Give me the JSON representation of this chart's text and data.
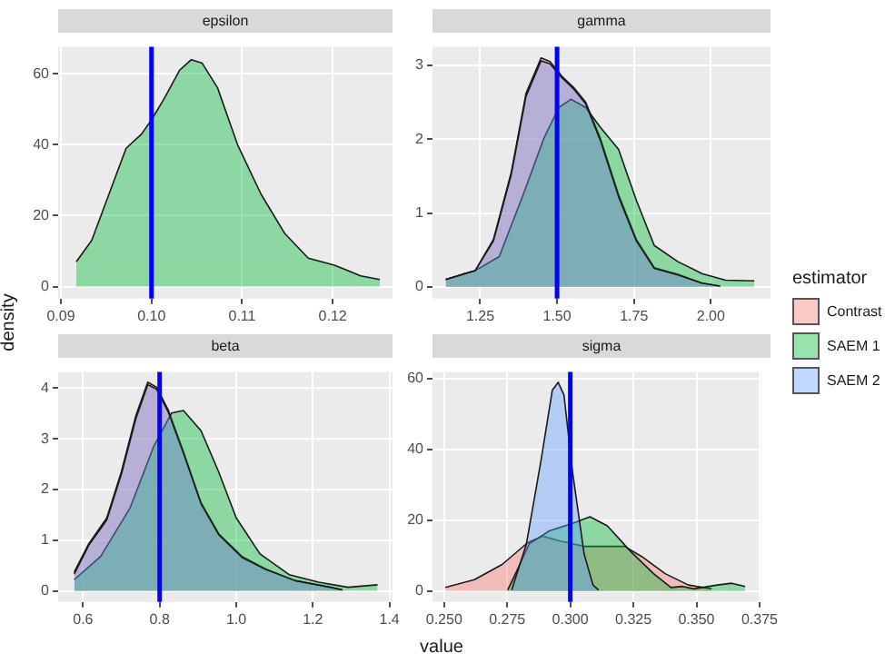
{
  "chart_data": [
    {
      "type": "area",
      "title": "epsilon",
      "ylabel": "density",
      "xlim": [
        0.0897,
        0.1266
      ],
      "ylim": [
        -3.4,
        67.6
      ],
      "xticks": [
        {
          "value": 0.09,
          "label": "0.09"
        },
        {
          "value": 0.1,
          "label": "0.10"
        },
        0.11,
        0.12
      ],
      "yticks": [
        0,
        20,
        40,
        60
      ],
      "grid": true,
      "ref_lines": [
        {
          "axis": "x",
          "value": 0.1,
          "color": "#0000ff"
        }
      ],
      "series": [
        {
          "name": "SAEM 1",
          "color": "#00ba38",
          "x": [
            0.0917,
            0.0934,
            0.0953,
            0.0972,
            0.0989,
            0.1,
            0.1014,
            0.1031,
            0.1044,
            0.1056,
            0.1073,
            0.1095,
            0.1121,
            0.1147,
            0.1173,
            0.1202,
            0.1231,
            0.1252
          ],
          "values": [
            7,
            13,
            26,
            39,
            43,
            47,
            53,
            61,
            64,
            63,
            56,
            40,
            26,
            15,
            8,
            6,
            3,
            2
          ]
        }
      ]
    },
    {
      "type": "area",
      "title": "gamma",
      "legend": "right",
      "legend_title": "estimator",
      "xlim": [
        1.095,
        2.194
      ],
      "ylim": [
        -0.16,
        3.25
      ],
      "xticks": [
        1.25,
        {
          "value": 1.5,
          "label": "1.50"
        },
        1.75,
        {
          "value": 2,
          "label": "2.00"
        }
      ],
      "yticks": [
        0,
        1,
        2,
        3
      ],
      "grid": true,
      "ref_lines": [
        {
          "axis": "x",
          "value": 1.5,
          "color": "#0000ff"
        }
      ],
      "series": [
        {
          "name": "Contrast",
          "color": "#f8766d",
          "x": [
            1.138,
            1.234,
            1.293,
            1.351,
            1.399,
            1.448,
            1.477,
            1.516,
            1.554,
            1.593,
            1.641,
            1.7,
            1.758,
            1.816,
            1.893,
            1.971,
            2.03
          ],
          "values": [
            0.1,
            0.22,
            0.64,
            1.55,
            2.62,
            3.1,
            3.05,
            2.85,
            2.7,
            2.5,
            2.01,
            1.25,
            0.64,
            0.26,
            0.17,
            0.05,
            0.01
          ]
        },
        {
          "name": "SAEM 1",
          "color": "#00ba38",
          "x": [
            1.138,
            1.234,
            1.312,
            1.39,
            1.457,
            1.506,
            1.545,
            1.593,
            1.641,
            1.7,
            1.758,
            1.816,
            1.893,
            1.971,
            2.048,
            2.141
          ],
          "values": [
            0.1,
            0.22,
            0.41,
            1.25,
            2.01,
            2.43,
            2.54,
            2.43,
            2.16,
            1.86,
            1.17,
            0.56,
            0.34,
            0.18,
            0.09,
            0.08
          ]
        },
        {
          "name": "SAEM 2",
          "color": "#619cff",
          "x": [
            1.138,
            1.234,
            1.293,
            1.351,
            1.399,
            1.448,
            1.477,
            1.516,
            1.554,
            1.593,
            1.641,
            1.7,
            1.758,
            1.816,
            1.893,
            1.971,
            2.03
          ],
          "values": [
            0.1,
            0.22,
            0.62,
            1.52,
            2.58,
            3.06,
            3.02,
            2.83,
            2.68,
            2.48,
            1.98,
            1.22,
            0.62,
            0.25,
            0.16,
            0.05,
            0.01
          ]
        }
      ]
    },
    {
      "type": "area",
      "title": "beta",
      "xlabel": "value",
      "xlim": [
        0.535,
        1.408
      ],
      "ylim": [
        -0.22,
        4.32
      ],
      "xticks": [
        0.6,
        0.8,
        {
          "value": 1,
          "label": "1.0"
        },
        1.2,
        1.4
      ],
      "yticks": [
        0,
        1,
        2,
        3,
        4
      ],
      "grid": true,
      "ref_lines": [
        {
          "axis": "x",
          "value": 0.8,
          "color": "#0000ff"
        }
      ],
      "series": [
        {
          "name": "Contrast",
          "color": "#f8766d",
          "x": [
            0.577,
            0.615,
            0.662,
            0.7,
            0.738,
            0.769,
            0.792,
            0.823,
            0.862,
            0.908,
            0.954,
            1.015,
            1.077,
            1.154,
            1.246,
            1.277
          ],
          "values": [
            0.37,
            0.93,
            1.44,
            2.35,
            3.46,
            4.12,
            4.02,
            3.56,
            2.75,
            1.74,
            1.13,
            0.68,
            0.43,
            0.2,
            0.07,
            0.02
          ]
        },
        {
          "name": "SAEM 1",
          "color": "#00ba38",
          "x": [
            0.577,
            0.646,
            0.723,
            0.785,
            0.831,
            0.862,
            0.908,
            0.954,
            1.0,
            1.062,
            1.138,
            1.215,
            1.292,
            1.369
          ],
          "values": [
            0.22,
            0.68,
            1.64,
            2.86,
            3.51,
            3.56,
            3.16,
            2.35,
            1.44,
            0.73,
            0.32,
            0.17,
            0.07,
            0.12
          ]
        },
        {
          "name": "SAEM 2",
          "color": "#619cff",
          "x": [
            0.577,
            0.615,
            0.662,
            0.7,
            0.738,
            0.769,
            0.792,
            0.823,
            0.862,
            0.908,
            0.954,
            1.015,
            1.077,
            1.154,
            1.246,
            1.277
          ],
          "values": [
            0.33,
            0.9,
            1.4,
            2.3,
            3.4,
            4.07,
            3.98,
            3.52,
            2.72,
            1.72,
            1.11,
            0.66,
            0.42,
            0.2,
            0.07,
            0.02
          ]
        }
      ]
    },
    {
      "type": "area",
      "title": "sigma",
      "xlim": [
        0.2454,
        0.3755
      ],
      "ylim": [
        -3.1,
        61.9
      ],
      "xticks": [
        {
          "value": 0.25,
          "label": "0.250"
        },
        0.275,
        {
          "value": 0.3,
          "label": "0.300"
        },
        0.325,
        {
          "value": 0.35,
          "label": "0.350"
        },
        0.375
      ],
      "yticks": [
        0,
        20,
        40,
        60
      ],
      "grid": true,
      "ref_lines": [
        {
          "axis": "x",
          "value": 0.3,
          "color": "#0000ff"
        }
      ],
      "series": [
        {
          "name": "Contrast",
          "color": "#f8766d",
          "x": [
            0.2505,
            0.262,
            0.273,
            0.283,
            0.289,
            0.296,
            0.3055,
            0.3147,
            0.3216,
            0.3284,
            0.3376,
            0.3468,
            0.356
          ],
          "values": [
            1,
            3.2,
            7.5,
            13.6,
            15.5,
            14.1,
            12.6,
            12.6,
            12.6,
            9.7,
            4.9,
            1.7,
            0.6
          ]
        },
        {
          "name": "SAEM 1",
          "color": "#00ba38",
          "x": [
            0.2752,
            0.2791,
            0.2837,
            0.2917,
            0.3009,
            0.3078,
            0.3147,
            0.3239,
            0.333,
            0.3399,
            0.3445,
            0.349,
            0.3583,
            0.364,
            0.3693
          ],
          "values": [
            0.3,
            6.1,
            13.3,
            17,
            19.1,
            21,
            18.4,
            11.2,
            4.9,
            1,
            1.3,
            0.6,
            1.7,
            2.2,
            1.3
          ]
        },
        {
          "name": "SAEM 2",
          "color": "#619cff",
          "x": [
            0.2768,
            0.2826,
            0.2883,
            0.2929,
            0.2952,
            0.2975,
            0.3009,
            0.3055,
            0.309,
            0.3112
          ],
          "values": [
            0.3,
            13.3,
            36.5,
            56.8,
            59,
            55.4,
            33.6,
            10.4,
            1.7,
            0.3
          ]
        }
      ]
    }
  ]
}
